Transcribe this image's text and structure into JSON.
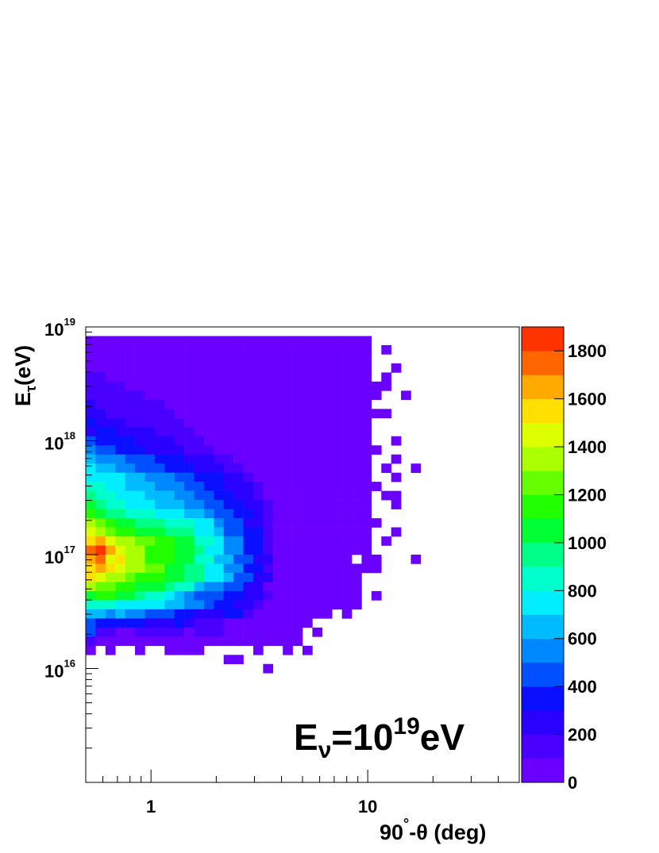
{
  "chart_data": {
    "type": "heatmap",
    "x_label": [
      "90",
      "°",
      "-θ (deg)"
    ],
    "y_label": [
      "E",
      "τ",
      "(eV)"
    ],
    "annotation": [
      "E",
      "ν",
      "=10",
      "19",
      "eV"
    ],
    "xlog": true,
    "ylog": true,
    "xlim": [
      0.5,
      50
    ],
    "ylim": [
      1000000000000000.0,
      1e+19
    ],
    "xticks": [
      1,
      10
    ],
    "xminorticks": [
      0.6,
      0.7,
      0.8,
      0.9,
      2,
      3,
      4,
      5,
      6,
      7,
      8,
      9,
      20,
      30,
      40
    ],
    "yticks": [
      {
        "value": 1e+16,
        "label": "10",
        "exponent": "16"
      },
      {
        "value": 1e+17,
        "label": "10",
        "exponent": "17"
      },
      {
        "value": 1e+18,
        "label": "10",
        "exponent": "18"
      },
      {
        "value": 1e+19,
        "label": "10",
        "exponent": "19"
      }
    ],
    "yminorticks": [
      2000000000000000.0,
      3000000000000000.0,
      4000000000000000.0,
      5000000000000000.0,
      6000000000000000.0,
      7000000000000000.0,
      8000000000000000.0,
      9000000000000000.0,
      2e+16,
      3e+16,
      4e+16,
      5e+16,
      6e+16,
      7e+16,
      8e+16,
      9e+16,
      2e+17,
      3e+17,
      4e+17,
      5e+17,
      6e+17,
      7e+17,
      8e+17,
      9e+17,
      2e+18,
      3e+18,
      4e+18,
      5e+18,
      6e+18,
      7e+18,
      8e+18,
      9e+18
    ],
    "xbins": 44,
    "ybins": 50,
    "zlim": [
      0,
      1900
    ],
    "zticks": [
      0,
      200,
      400,
      600,
      800,
      1000,
      1200,
      1400,
      1600,
      1800
    ],
    "palette": [
      "#6a00ff",
      "#4a00ff",
      "#2a00ff",
      "#0a10ff",
      "#0050ff",
      "#0088ff",
      "#00bbff",
      "#00eeff",
      "#00ffcc",
      "#00ff88",
      "#00ff33",
      "#22ff00",
      "#66ff00",
      "#aaff00",
      "#ddff00",
      "#ffe000",
      "#ffaa00",
      "#ff6600",
      "#ff3300"
    ],
    "z": [
      [],
      [
        40,
        40,
        40,
        40,
        40,
        40,
        40,
        40,
        40,
        40,
        40,
        40,
        40,
        40,
        40,
        40,
        40,
        40,
        40,
        40,
        40,
        40,
        40,
        40,
        40,
        40,
        40,
        40,
        40
      ],
      [
        40,
        40,
        40,
        40,
        40,
        40,
        40,
        40,
        40,
        40,
        40,
        40,
        40,
        40,
        40,
        40,
        40,
        40,
        40,
        40,
        40,
        40,
        40,
        40,
        40,
        40,
        40,
        40,
        40,
        null,
        40
      ],
      [
        40,
        40,
        40,
        40,
        40,
        40,
        40,
        40,
        40,
        40,
        40,
        40,
        40,
        40,
        40,
        40,
        40,
        40,
        40,
        40,
        40,
        40,
        40,
        40,
        40,
        40,
        40,
        40,
        40
      ],
      [
        40,
        40,
        40,
        40,
        40,
        40,
        40,
        40,
        40,
        40,
        40,
        40,
        40,
        40,
        40,
        40,
        40,
        40,
        40,
        40,
        40,
        40,
        40,
        40,
        40,
        40,
        40,
        40,
        40,
        null,
        null,
        40
      ],
      [
        150,
        150,
        40,
        40,
        40,
        40,
        40,
        40,
        40,
        40,
        40,
        40,
        40,
        40,
        40,
        40,
        40,
        40,
        40,
        40,
        40,
        40,
        40,
        40,
        40,
        40,
        40,
        40,
        40,
        null,
        40
      ],
      [
        150,
        150,
        150,
        150,
        40,
        40,
        40,
        40,
        40,
        40,
        40,
        40,
        40,
        40,
        40,
        40,
        40,
        40,
        40,
        40,
        40,
        40,
        40,
        40,
        40,
        40,
        40,
        40,
        40,
        40,
        40
      ],
      [
        150,
        150,
        150,
        150,
        150,
        150,
        40,
        40,
        40,
        40,
        40,
        40,
        40,
        40,
        40,
        40,
        40,
        40,
        40,
        40,
        40,
        40,
        40,
        40,
        40,
        40,
        40,
        40,
        40,
        40,
        null,
        null,
        40
      ],
      [
        250,
        150,
        150,
        150,
        150,
        150,
        150,
        150,
        40,
        40,
        40,
        40,
        40,
        40,
        40,
        40,
        40,
        40,
        40,
        40,
        40,
        40,
        40,
        40,
        40,
        40,
        40,
        40,
        40
      ],
      [
        250,
        250,
        150,
        150,
        150,
        150,
        150,
        150,
        150,
        40,
        40,
        40,
        40,
        40,
        40,
        40,
        40,
        40,
        40,
        40,
        40,
        40,
        40,
        40,
        40,
        40,
        40,
        40,
        40,
        40,
        40
      ],
      [
        350,
        250,
        250,
        250,
        150,
        150,
        150,
        150,
        150,
        150,
        40,
        40,
        40,
        40,
        40,
        40,
        40,
        40,
        40,
        40,
        40,
        40,
        40,
        40,
        40,
        40,
        40,
        40,
        40
      ],
      [
        250,
        350,
        350,
        250,
        250,
        250,
        250,
        150,
        150,
        150,
        150,
        40,
        40,
        40,
        40,
        40,
        40,
        40,
        40,
        40,
        40,
        40,
        40,
        40,
        40,
        40,
        40,
        40,
        40
      ],
      [
        450,
        350,
        350,
        350,
        350,
        250,
        250,
        250,
        250,
        150,
        150,
        150,
        40,
        40,
        40,
        40,
        40,
        40,
        40,
        40,
        40,
        40,
        40,
        40,
        40,
        40,
        40,
        40,
        40,
        null,
        null,
        40
      ],
      [
        550,
        450,
        450,
        350,
        350,
        350,
        250,
        250,
        250,
        250,
        150,
        150,
        150,
        40,
        40,
        40,
        40,
        40,
        40,
        40,
        40,
        40,
        40,
        40,
        40,
        40,
        40,
        40,
        40,
        40
      ],
      [
        650,
        550,
        550,
        550,
        450,
        450,
        450,
        350,
        350,
        350,
        250,
        250,
        250,
        150,
        150,
        40,
        40,
        40,
        40,
        40,
        40,
        40,
        40,
        40,
        40,
        40,
        40,
        40,
        40,
        null,
        null,
        40
      ],
      [
        750,
        650,
        650,
        550,
        550,
        450,
        450,
        450,
        350,
        350,
        350,
        250,
        250,
        250,
        150,
        150,
        40,
        40,
        40,
        40,
        40,
        40,
        40,
        40,
        40,
        40,
        40,
        40,
        40,
        null,
        40,
        null,
        null,
        40
      ],
      [
        750,
        750,
        750,
        750,
        650,
        650,
        550,
        550,
        550,
        450,
        450,
        350,
        350,
        350,
        250,
        250,
        150,
        40,
        40,
        40,
        40,
        40,
        40,
        40,
        40,
        40,
        40,
        40,
        40,
        null,
        null,
        40
      ],
      [
        850,
        850,
        750,
        750,
        650,
        650,
        650,
        550,
        550,
        550,
        450,
        450,
        350,
        350,
        250,
        250,
        250,
        150,
        40,
        40,
        40,
        40,
        40,
        40,
        40,
        40,
        40,
        40,
        40,
        40
      ],
      [
        950,
        850,
        850,
        750,
        750,
        750,
        650,
        650,
        650,
        550,
        550,
        450,
        450,
        350,
        350,
        250,
        250,
        150,
        40,
        40,
        40,
        40,
        40,
        40,
        40,
        40,
        40,
        40,
        40,
        null,
        40,
        40
      ],
      [
        1050,
        950,
        850,
        850,
        750,
        750,
        750,
        650,
        650,
        650,
        550,
        550,
        450,
        450,
        350,
        350,
        250,
        250,
        150,
        40,
        40,
        40,
        40,
        40,
        40,
        40,
        40,
        40,
        40,
        null,
        null,
        40
      ],
      [
        1150,
        1050,
        950,
        950,
        850,
        850,
        850,
        750,
        750,
        750,
        650,
        650,
        550,
        450,
        450,
        350,
        350,
        250,
        150,
        40,
        40,
        40,
        40,
        40,
        40,
        40,
        40,
        40,
        40
      ],
      [
        1350,
        1250,
        1150,
        1050,
        1050,
        950,
        950,
        950,
        850,
        850,
        850,
        750,
        750,
        550,
        450,
        450,
        250,
        250,
        150,
        40,
        40,
        40,
        40,
        40,
        40,
        40,
        40,
        40,
        40,
        40
      ],
      [
        1450,
        1350,
        1250,
        1150,
        1150,
        1050,
        1050,
        1050,
        950,
        950,
        950,
        750,
        750,
        650,
        450,
        450,
        350,
        350,
        150,
        40,
        40,
        40,
        40,
        40,
        40,
        40,
        40,
        40,
        40,
        null,
        null,
        40
      ],
      [
        1550,
        1650,
        1450,
        1350,
        1350,
        1250,
        1250,
        1150,
        1150,
        1050,
        1050,
        850,
        850,
        750,
        550,
        550,
        350,
        350,
        150,
        40,
        40,
        40,
        40,
        40,
        40,
        40,
        40,
        40,
        40,
        null,
        40
      ],
      [
        1750,
        1850,
        1650,
        1450,
        1350,
        1350,
        1150,
        1150,
        1150,
        1050,
        1050,
        950,
        750,
        750,
        550,
        550,
        350,
        350,
        150,
        40,
        40,
        40,
        40,
        40,
        40,
        40,
        40,
        40,
        40
      ],
      [
        1650,
        1750,
        1450,
        1550,
        1350,
        1350,
        1150,
        1150,
        1150,
        1050,
        1050,
        850,
        850,
        650,
        650,
        450,
        450,
        250,
        250,
        40,
        40,
        40,
        40,
        40,
        40,
        40,
        40,
        null,
        40,
        40,
        null,
        null,
        null,
        40
      ],
      [
        1550,
        1650,
        1550,
        1450,
        1350,
        1350,
        1250,
        1250,
        1050,
        1050,
        950,
        950,
        750,
        750,
        550,
        550,
        350,
        350,
        150,
        40,
        40,
        40,
        40,
        40,
        40,
        40,
        40,
        40,
        40,
        40
      ],
      [
        1550,
        1450,
        1350,
        1350,
        1250,
        1150,
        1150,
        1150,
        1050,
        1050,
        950,
        950,
        750,
        750,
        650,
        450,
        450,
        250,
        250,
        40,
        40,
        40,
        40,
        40,
        40,
        40,
        40,
        40
      ],
      [
        1350,
        1250,
        1250,
        1150,
        1150,
        1050,
        1050,
        1050,
        950,
        850,
        850,
        650,
        550,
        550,
        450,
        450,
        250,
        250,
        40,
        40,
        40,
        40,
        40,
        40,
        40,
        40,
        40,
        40
      ],
      [
        1050,
        1150,
        1150,
        1050,
        1050,
        950,
        850,
        850,
        750,
        650,
        550,
        450,
        450,
        450,
        350,
        350,
        250,
        250,
        150,
        40,
        40,
        40,
        40,
        40,
        40,
        40,
        40,
        40,
        null,
        40
      ],
      [
        850,
        850,
        850,
        750,
        750,
        750,
        750,
        750,
        650,
        650,
        550,
        550,
        450,
        350,
        350,
        250,
        250,
        150,
        40,
        40,
        40,
        40,
        40,
        40,
        40,
        40,
        40,
        40
      ],
      [
        650,
        650,
        550,
        650,
        550,
        550,
        450,
        450,
        450,
        350,
        350,
        250,
        250,
        250,
        350,
        350,
        150,
        40,
        40,
        40,
        40,
        40,
        40,
        40,
        40,
        null,
        40
      ],
      [
        450,
        350,
        350,
        350,
        350,
        350,
        250,
        250,
        250,
        350,
        250,
        150,
        150,
        150,
        40,
        40,
        40,
        40,
        40,
        40,
        40,
        40,
        40
      ],
      [
        450,
        150,
        150,
        40,
        40,
        150,
        150,
        150,
        150,
        150,
        40,
        150,
        150,
        150,
        40,
        40,
        40,
        40,
        40,
        40,
        40,
        40,
        null,
        40
      ],
      [
        150,
        40,
        40,
        40,
        40,
        40,
        40,
        40,
        40,
        40,
        40,
        40,
        40,
        40,
        40,
        40,
        40,
        40,
        40,
        40,
        40,
        40
      ],
      [
        40,
        null,
        40,
        null,
        null,
        40,
        null,
        null,
        40,
        40,
        40,
        40,
        null,
        null,
        null,
        null,
        null,
        40,
        null,
        null,
        40,
        null,
        40
      ],
      [
        null,
        null,
        null,
        null,
        null,
        null,
        null,
        null,
        null,
        null,
        null,
        null,
        null,
        null,
        40,
        40
      ],
      [
        null,
        null,
        null,
        null,
        null,
        null,
        null,
        null,
        null,
        null,
        null,
        null,
        null,
        null,
        null,
        null,
        null,
        null,
        40
      ]
    ]
  }
}
